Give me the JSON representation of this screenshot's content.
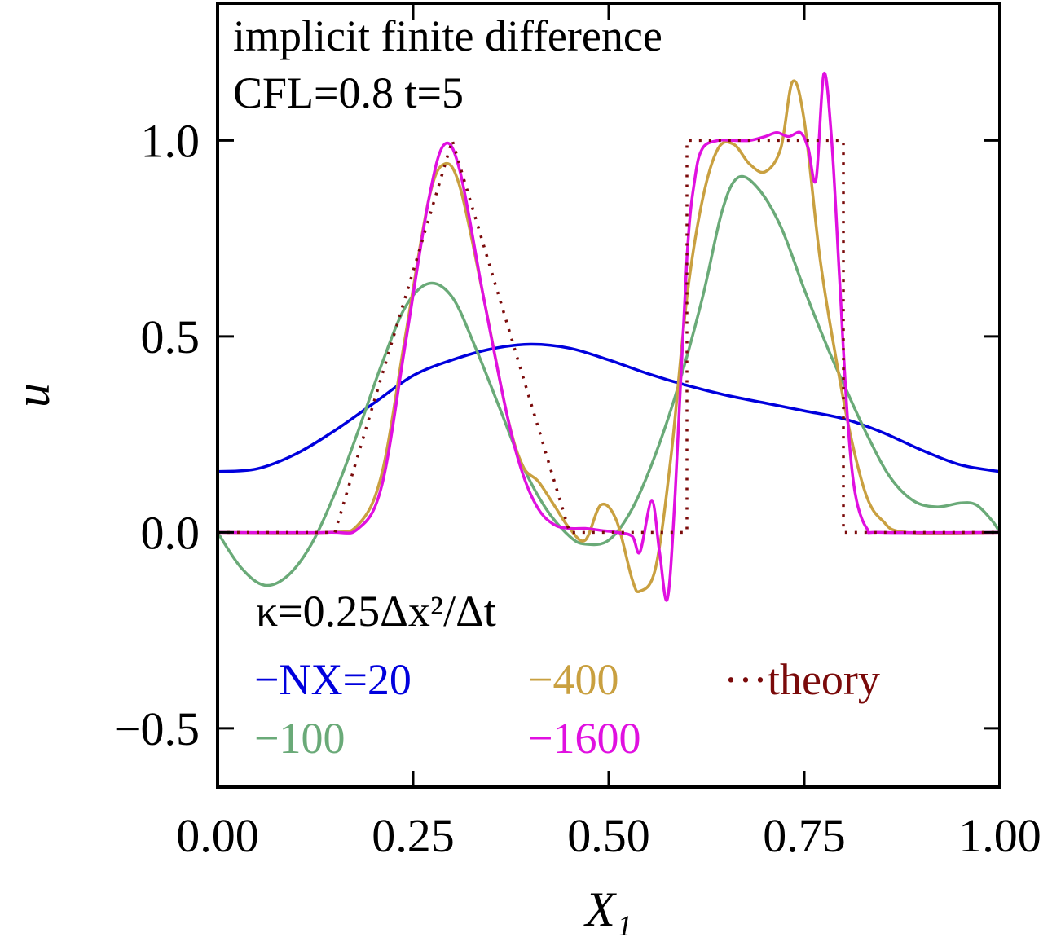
{
  "chart_data": {
    "type": "line",
    "title_lines": [
      "implicit finite difference",
      "CFL=0.8  t=5"
    ],
    "annotation": "κ=0.25Δx²/Δt",
    "xlabel": "X₁",
    "ylabel": "u",
    "xlim": [
      0.0,
      1.0
    ],
    "ylim": [
      -0.65,
      1.35
    ],
    "x_ticks": [
      0.0,
      0.25,
      0.5,
      0.75,
      1.0
    ],
    "x_tick_labels": [
      "0.00",
      "0.25",
      "0.50",
      "0.75",
      "1.00"
    ],
    "y_ticks": [
      -0.5,
      0.0,
      0.5,
      1.0
    ],
    "y_tick_labels": [
      "−0.5",
      "0.0",
      "0.5",
      "1.0"
    ],
    "grid": false,
    "legend_position": "lower-left",
    "series": [
      {
        "name": "NX=20",
        "legend_label": "−NX=20",
        "color": "#0000dd",
        "style": "solid",
        "points": [
          [
            0.0,
            0.155
          ],
          [
            0.05,
            0.162
          ],
          [
            0.1,
            0.2
          ],
          [
            0.15,
            0.26
          ],
          [
            0.2,
            0.33
          ],
          [
            0.25,
            0.4
          ],
          [
            0.3,
            0.44
          ],
          [
            0.35,
            0.468
          ],
          [
            0.4,
            0.48
          ],
          [
            0.45,
            0.47
          ],
          [
            0.5,
            0.44
          ],
          [
            0.55,
            0.405
          ],
          [
            0.6,
            0.375
          ],
          [
            0.65,
            0.35
          ],
          [
            0.7,
            0.33
          ],
          [
            0.75,
            0.31
          ],
          [
            0.8,
            0.29
          ],
          [
            0.85,
            0.255
          ],
          [
            0.9,
            0.21
          ],
          [
            0.95,
            0.172
          ],
          [
            1.0,
            0.155
          ]
        ]
      },
      {
        "name": "100",
        "legend_label": "−100",
        "color": "#6aaa78",
        "style": "solid",
        "points": [
          [
            0.0,
            0.0
          ],
          [
            0.03,
            -0.09
          ],
          [
            0.06,
            -0.135
          ],
          [
            0.09,
            -0.11
          ],
          [
            0.12,
            -0.03
          ],
          [
            0.15,
            0.1
          ],
          [
            0.18,
            0.26
          ],
          [
            0.21,
            0.43
          ],
          [
            0.24,
            0.575
          ],
          [
            0.27,
            0.635
          ],
          [
            0.3,
            0.6
          ],
          [
            0.33,
            0.47
          ],
          [
            0.36,
            0.32
          ],
          [
            0.39,
            0.17
          ],
          [
            0.42,
            0.06
          ],
          [
            0.45,
            -0.01
          ],
          [
            0.47,
            -0.03
          ],
          [
            0.5,
            -0.02
          ],
          [
            0.53,
            0.06
          ],
          [
            0.56,
            0.2
          ],
          [
            0.59,
            0.38
          ],
          [
            0.62,
            0.6
          ],
          [
            0.645,
            0.82
          ],
          [
            0.665,
            0.905
          ],
          [
            0.69,
            0.88
          ],
          [
            0.72,
            0.78
          ],
          [
            0.75,
            0.62
          ],
          [
            0.78,
            0.47
          ],
          [
            0.8,
            0.38
          ],
          [
            0.83,
            0.25
          ],
          [
            0.86,
            0.14
          ],
          [
            0.89,
            0.08
          ],
          [
            0.92,
            0.065
          ],
          [
            0.95,
            0.075
          ],
          [
            0.97,
            0.07
          ],
          [
            0.99,
            0.03
          ],
          [
            1.0,
            0.0
          ]
        ]
      },
      {
        "name": "400",
        "legend_label": "−400",
        "color": "#c9a040",
        "style": "solid",
        "points": [
          [
            0.0,
            0.0
          ],
          [
            0.14,
            0.0
          ],
          [
            0.18,
            0.02
          ],
          [
            0.21,
            0.15
          ],
          [
            0.24,
            0.5
          ],
          [
            0.27,
            0.85
          ],
          [
            0.29,
            0.94
          ],
          [
            0.31,
            0.88
          ],
          [
            0.34,
            0.6
          ],
          [
            0.37,
            0.3
          ],
          [
            0.39,
            0.17
          ],
          [
            0.41,
            0.13
          ],
          [
            0.43,
            0.07
          ],
          [
            0.45,
            0.01
          ],
          [
            0.47,
            -0.02
          ],
          [
            0.49,
            0.07
          ],
          [
            0.51,
            0.03
          ],
          [
            0.53,
            -0.12
          ],
          [
            0.54,
            -0.15
          ],
          [
            0.56,
            -0.09
          ],
          [
            0.58,
            0.2
          ],
          [
            0.6,
            0.6
          ],
          [
            0.62,
            0.85
          ],
          [
            0.64,
            0.98
          ],
          [
            0.66,
            0.99
          ],
          [
            0.68,
            0.94
          ],
          [
            0.7,
            0.92
          ],
          [
            0.72,
            0.98
          ],
          [
            0.735,
            1.15
          ],
          [
            0.75,
            1.05
          ],
          [
            0.77,
            0.7
          ],
          [
            0.79,
            0.45
          ],
          [
            0.81,
            0.24
          ],
          [
            0.83,
            0.09
          ],
          [
            0.85,
            0.03
          ],
          [
            0.88,
            0.0
          ],
          [
            1.0,
            0.0
          ]
        ]
      },
      {
        "name": "1600",
        "legend_label": "−1600",
        "color": "#e010e0",
        "style": "solid",
        "points": [
          [
            0.0,
            0.0
          ],
          [
            0.14,
            0.0
          ],
          [
            0.18,
            0.01
          ],
          [
            0.21,
            0.12
          ],
          [
            0.24,
            0.48
          ],
          [
            0.27,
            0.85
          ],
          [
            0.29,
            0.99
          ],
          [
            0.31,
            0.92
          ],
          [
            0.34,
            0.6
          ],
          [
            0.37,
            0.3
          ],
          [
            0.39,
            0.15
          ],
          [
            0.41,
            0.06
          ],
          [
            0.43,
            0.02
          ],
          [
            0.45,
            0.01
          ],
          [
            0.47,
            0.01
          ],
          [
            0.49,
            0.005
          ],
          [
            0.51,
            0.0
          ],
          [
            0.53,
            -0.01
          ],
          [
            0.54,
            -0.05
          ],
          [
            0.555,
            0.08
          ],
          [
            0.565,
            -0.05
          ],
          [
            0.575,
            -0.17
          ],
          [
            0.585,
            0.1
          ],
          [
            0.6,
            0.7
          ],
          [
            0.61,
            0.9
          ],
          [
            0.62,
            0.98
          ],
          [
            0.64,
            1.0
          ],
          [
            0.66,
            1.0
          ],
          [
            0.68,
            1.0
          ],
          [
            0.7,
            1.01
          ],
          [
            0.715,
            1.02
          ],
          [
            0.73,
            1.01
          ],
          [
            0.745,
            1.02
          ],
          [
            0.755,
            0.98
          ],
          [
            0.765,
            0.9
          ],
          [
            0.775,
            1.17
          ],
          [
            0.785,
            1.0
          ],
          [
            0.795,
            0.65
          ],
          [
            0.805,
            0.3
          ],
          [
            0.815,
            0.1
          ],
          [
            0.83,
            0.01
          ],
          [
            0.85,
            0.0
          ],
          [
            1.0,
            0.0
          ]
        ]
      },
      {
        "name": "theory",
        "legend_label": "···theory",
        "color": "#7a0a0a",
        "style": "dotted",
        "points": [
          [
            0.0,
            0.0
          ],
          [
            0.15,
            0.0
          ],
          [
            0.3,
            1.0
          ],
          [
            0.45,
            0.0
          ],
          [
            0.6,
            0.0
          ],
          [
            0.6,
            1.0
          ],
          [
            0.8,
            1.0
          ],
          [
            0.8,
            0.0
          ],
          [
            1.0,
            0.0
          ]
        ]
      }
    ]
  }
}
